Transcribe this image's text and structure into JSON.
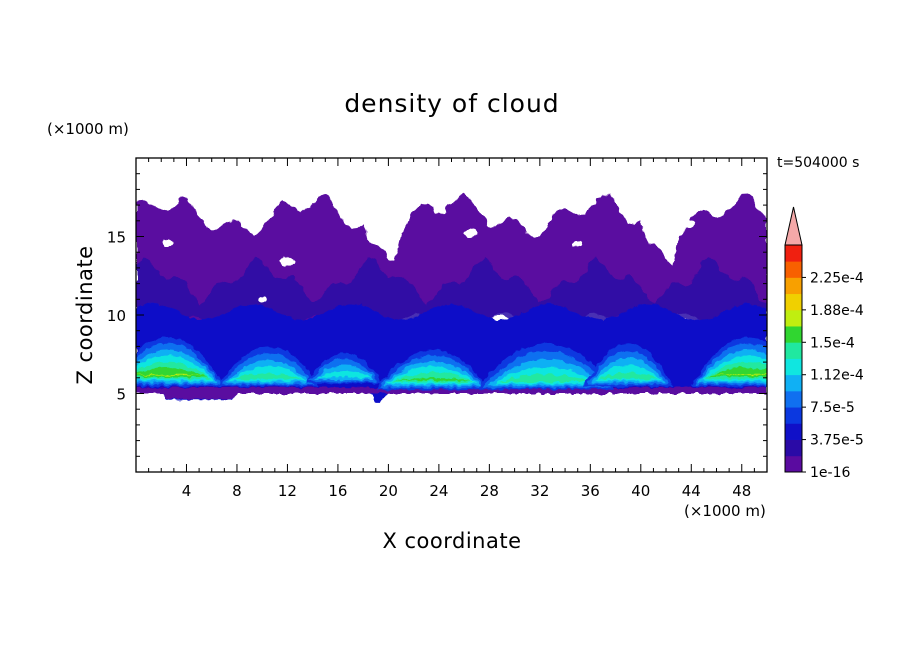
{
  "chart_data": {
    "type": "heatmap",
    "title": "density of cloud",
    "xlabel": "X coordinate",
    "ylabel": "Z coordinate",
    "x_unit": "(×1000 m)",
    "y_unit": "(×1000 m)",
    "time_label": "t=504000 s",
    "xlim": [
      0,
      50
    ],
    "ylim": [
      0,
      20
    ],
    "x_ticks": [
      4,
      8,
      12,
      16,
      20,
      24,
      28,
      32,
      36,
      40,
      44,
      48
    ],
    "y_ticks": [
      5,
      10,
      15
    ],
    "colorbar": {
      "levels": [
        1e-16,
        1.875e-05,
        3.75e-05,
        5.625e-05,
        7.5e-05,
        9.375e-05,
        0.0001125,
        0.00013125,
        0.00015,
        0.00016875,
        0.0001875,
        0.00020625,
        0.000225,
        0.00024375
      ],
      "labels": [
        "1e-16",
        "3.75e-5",
        "7.5e-5",
        "1.12e-4",
        "1.5e-4",
        "1.88e-4",
        "2.25e-4"
      ],
      "colors": [
        "#5a0ba0",
        "#2a0aa6",
        "#1010c8",
        "#0b38e0",
        "#1070f0",
        "#10b0f4",
        "#10e6e0",
        "#20e8a0",
        "#30d630",
        "#c0ee10",
        "#f0d000",
        "#f8a000",
        "#f86000",
        "#f02010"
      ],
      "overflow_color": "#f4a8a8"
    },
    "description_points": [
      {
        "x": 2,
        "z": 7.4,
        "value": 0.00016
      },
      {
        "x": 10,
        "z": 7.0,
        "value": 0.0001
      },
      {
        "x": 23,
        "z": 6.8,
        "value": 0.00014
      },
      {
        "x": 33,
        "z": 7.0,
        "value": 0.00012
      },
      {
        "x": 48,
        "z": 7.4,
        "value": 0.00016
      },
      {
        "x": 25,
        "z": 12.5,
        "value": 1e-05
      }
    ]
  }
}
